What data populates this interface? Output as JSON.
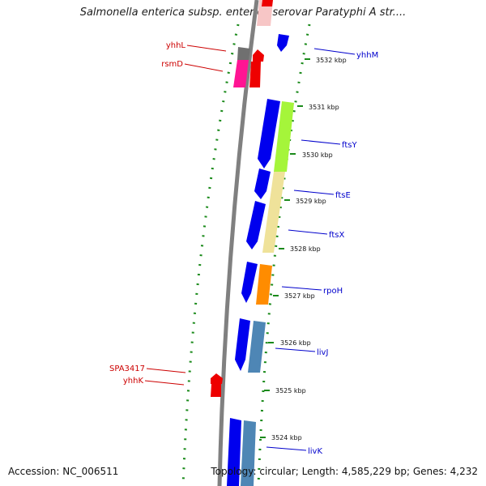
{
  "title": "Salmonella enterica subsp. enterica serovar Paratyphi A str....",
  "accession": "Accession: NC_006511",
  "summary": "Topology: circular; Length: 4,585,229 bp; Genes: 4,232",
  "colors": {
    "backbone": "#808080",
    "forward_strand": "#0000ee",
    "reverse_strand": "#ee0000",
    "ticks": "#1a8a1a",
    "fwd_label": "#0000cc",
    "rev_label": "#cc0000"
  },
  "forward_gene_labels": [
    "yhhM",
    "ftsY",
    "ftsE",
    "ftsX",
    "rpoH",
    "livJ",
    "livK"
  ],
  "reverse_gene_labels": [
    "yhhL",
    "rsmD",
    "SPA3417",
    "yhhK"
  ],
  "scale_labels": [
    "3532 kbp",
    "3531 kbp",
    "3530 kbp",
    "3529 kbp",
    "3528 kbp",
    "3527 kbp",
    "3526 kbp",
    "3525 kbp",
    "3524 kbp"
  ]
}
